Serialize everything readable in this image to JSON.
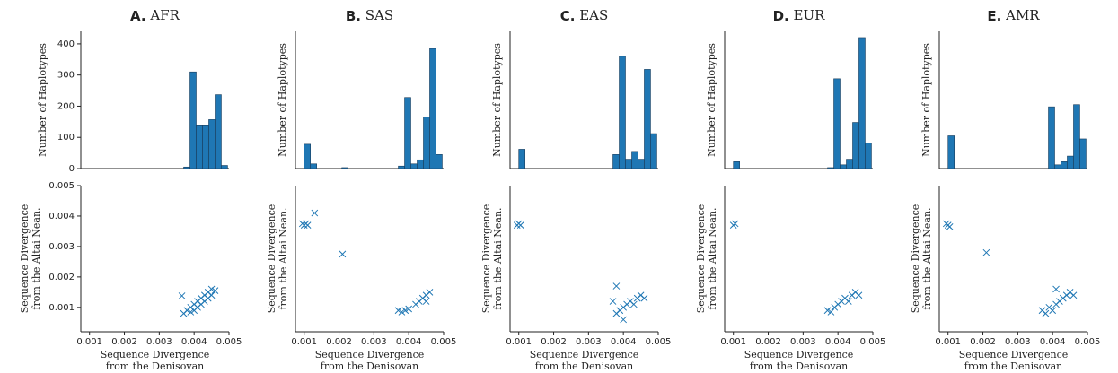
{
  "chart_data": [
    {
      "type": "histogram",
      "panel": "A.",
      "title": "AFR",
      "ylabel": "Number of Haplotypes",
      "color": "#1f77b4",
      "bins": [
        0.001,
        0.00118,
        0.00136,
        0.00154,
        0.00172,
        0.0019,
        0.00208,
        0.00226,
        0.00244,
        0.00262,
        0.0028,
        0.00298,
        0.00316,
        0.00334,
        0.00352,
        0.0037,
        0.00388,
        0.00406,
        0.00424,
        0.00442,
        0.0046,
        0.00478,
        0.00496
      ],
      "values": [
        0,
        0,
        0,
        0,
        0,
        0,
        0,
        0,
        0,
        0,
        0,
        0,
        0,
        0,
        0,
        5,
        310,
        140,
        140,
        157,
        237,
        10
      ],
      "xlim": [
        0.00075,
        0.005
      ],
      "ylim": [
        0,
        440
      ],
      "yticks": [
        0,
        100,
        200,
        300,
        400
      ]
    },
    {
      "type": "scatter",
      "xlabel": [
        "Sequence Divergence",
        "from the Denisovan"
      ],
      "ylabel": [
        "Sequence Divergence",
        "from the Altai Nean."
      ],
      "color": "#1f77b4",
      "x": [
        0.00365,
        0.0037,
        0.0038,
        0.0039,
        0.0039,
        0.004,
        0.004,
        0.0041,
        0.0041,
        0.0042,
        0.0042,
        0.0043,
        0.0043,
        0.0044,
        0.0044,
        0.0045,
        0.0045,
        0.0046
      ],
      "y": [
        0.00138,
        0.0008,
        0.0009,
        0.00085,
        0.001,
        0.0009,
        0.0011,
        0.001,
        0.0012,
        0.0011,
        0.0013,
        0.0012,
        0.0014,
        0.0013,
        0.0015,
        0.0014,
        0.0016,
        0.00155
      ],
      "xlim": [
        0.00075,
        0.005
      ],
      "ylim": [
        0.0002,
        0.005
      ],
      "xticks": [
        0.001,
        0.002,
        0.003,
        0.004,
        0.005
      ],
      "yticks": [
        0.001,
        0.002,
        0.003,
        0.004,
        0.005
      ]
    },
    {
      "type": "histogram",
      "panel": "B.",
      "title": "SAS",
      "ylabel": "Number of Haplotypes",
      "color": "#1f77b4",
      "bins": [
        0.001,
        0.00118,
        0.00136,
        0.00154,
        0.00172,
        0.0019,
        0.00208,
        0.00226,
        0.00244,
        0.00262,
        0.0028,
        0.00298,
        0.00316,
        0.00334,
        0.00352,
        0.0037,
        0.00388,
        0.00406,
        0.00424,
        0.00442,
        0.0046,
        0.00478,
        0.00496
      ],
      "values": [
        78,
        15,
        0,
        0,
        0,
        0,
        3,
        0,
        0,
        0,
        0,
        0,
        0,
        0,
        0,
        8,
        228,
        15,
        28,
        165,
        385,
        45
      ],
      "xlim": [
        0.00075,
        0.005
      ],
      "ylim": [
        0,
        440
      ]
    },
    {
      "type": "scatter",
      "xlabel": [
        "Sequence Divergence",
        "from the Denisovan"
      ],
      "ylabel": [
        "Sequence Divergence",
        "from the Altai Nean."
      ],
      "color": "#1f77b4",
      "x": [
        0.00095,
        0.001,
        0.00105,
        0.0011,
        0.0013,
        0.0021,
        0.0037,
        0.0038,
        0.0039,
        0.004,
        0.0042,
        0.0043,
        0.0044,
        0.0045,
        0.0045,
        0.0046
      ],
      "y": [
        0.00375,
        0.0037,
        0.00375,
        0.0037,
        0.0041,
        0.00275,
        0.0009,
        0.00085,
        0.0009,
        0.00095,
        0.0011,
        0.0012,
        0.0013,
        0.0014,
        0.0012,
        0.0015
      ],
      "xlim": [
        0.00075,
        0.005
      ],
      "ylim": [
        0.0002,
        0.005
      ],
      "xticks": [
        0.001,
        0.002,
        0.003,
        0.004,
        0.005
      ]
    },
    {
      "type": "histogram",
      "panel": "C.",
      "title": "EAS",
      "ylabel": "Number of Haplotypes",
      "color": "#1f77b4",
      "bins": [
        0.001,
        0.00118,
        0.00136,
        0.00154,
        0.00172,
        0.0019,
        0.00208,
        0.00226,
        0.00244,
        0.00262,
        0.0028,
        0.00298,
        0.00316,
        0.00334,
        0.00352,
        0.0037,
        0.00388,
        0.00406,
        0.00424,
        0.00442,
        0.0046,
        0.00478,
        0.00496
      ],
      "values": [
        62,
        0,
        0,
        0,
        0,
        0,
        0,
        0,
        0,
        0,
        0,
        0,
        0,
        0,
        0,
        45,
        360,
        30,
        55,
        30,
        318,
        112
      ],
      "xlim": [
        0.00075,
        0.005
      ],
      "ylim": [
        0,
        440
      ]
    },
    {
      "type": "scatter",
      "xlabel": [
        "Sequence Divergence",
        "from the Denisovan"
      ],
      "ylabel": [
        "Sequence Divergence",
        "from the Altai Nean."
      ],
      "color": "#1f77b4",
      "x": [
        0.00095,
        0.001,
        0.00105,
        0.0037,
        0.0038,
        0.0038,
        0.0039,
        0.004,
        0.004,
        0.0041,
        0.0042,
        0.0043,
        0.0044,
        0.0045,
        0.0046
      ],
      "y": [
        0.0037,
        0.00375,
        0.0037,
        0.0012,
        0.0017,
        0.0008,
        0.0009,
        0.0006,
        0.001,
        0.0011,
        0.0012,
        0.0011,
        0.0013,
        0.0014,
        0.0013
      ],
      "xlim": [
        0.00075,
        0.005
      ],
      "ylim": [
        0.0002,
        0.005
      ],
      "xticks": [
        0.001,
        0.002,
        0.003,
        0.004,
        0.005
      ]
    },
    {
      "type": "histogram",
      "panel": "D.",
      "title": "EUR",
      "ylabel": "Number of Haplotypes",
      "color": "#1f77b4",
      "bins": [
        0.001,
        0.00118,
        0.00136,
        0.00154,
        0.00172,
        0.0019,
        0.00208,
        0.00226,
        0.00244,
        0.00262,
        0.0028,
        0.00298,
        0.00316,
        0.00334,
        0.00352,
        0.0037,
        0.00388,
        0.00406,
        0.00424,
        0.00442,
        0.0046,
        0.00478,
        0.00496
      ],
      "values": [
        22,
        0,
        0,
        0,
        0,
        0,
        0,
        0,
        0,
        0,
        0,
        0,
        0,
        0,
        0,
        3,
        288,
        12,
        30,
        148,
        420,
        82
      ],
      "xlim": [
        0.00075,
        0.005
      ],
      "ylim": [
        0,
        440
      ]
    },
    {
      "type": "scatter",
      "xlabel": [
        "Sequence Divergence",
        "from the Denisovan"
      ],
      "ylabel": [
        "Sequence Divergence",
        "from the Altai Nean."
      ],
      "color": "#1f77b4",
      "x": [
        0.001,
        0.00105,
        0.0037,
        0.0038,
        0.0039,
        0.004,
        0.0041,
        0.0042,
        0.0043,
        0.0044,
        0.0045,
        0.0046
      ],
      "y": [
        0.0037,
        0.00375,
        0.0009,
        0.00085,
        0.001,
        0.0011,
        0.0012,
        0.0013,
        0.0012,
        0.0014,
        0.0015,
        0.0014
      ],
      "xlim": [
        0.00075,
        0.005
      ],
      "ylim": [
        0.0002,
        0.005
      ],
      "xticks": [
        0.001,
        0.002,
        0.003,
        0.004,
        0.005
      ]
    },
    {
      "type": "histogram",
      "panel": "E.",
      "title": "AMR",
      "ylabel": "Number of Haplotypes",
      "color": "#1f77b4",
      "bins": [
        0.001,
        0.00118,
        0.00136,
        0.00154,
        0.00172,
        0.0019,
        0.00208,
        0.00226,
        0.00244,
        0.00262,
        0.0028,
        0.00298,
        0.00316,
        0.00334,
        0.00352,
        0.0037,
        0.00388,
        0.00406,
        0.00424,
        0.00442,
        0.0046,
        0.00478,
        0.00496
      ],
      "values": [
        105,
        0,
        0,
        0,
        0,
        0,
        0,
        0,
        0,
        0,
        0,
        0,
        0,
        0,
        0,
        0,
        198,
        12,
        22,
        40,
        205,
        95
      ],
      "xlim": [
        0.00075,
        0.005
      ],
      "ylim": [
        0,
        440
      ]
    },
    {
      "type": "scatter",
      "xlabel": [
        "Sequence Divergence",
        "from the Denisovan"
      ],
      "ylabel": [
        "Sequence Divergence",
        "from the Altai Nean."
      ],
      "color": "#1f77b4",
      "x": [
        0.00095,
        0.001,
        0.00105,
        0.0021,
        0.0037,
        0.0038,
        0.0039,
        0.004,
        0.0041,
        0.0041,
        0.0042,
        0.0043,
        0.0044,
        0.0045,
        0.0046
      ],
      "y": [
        0.00375,
        0.0037,
        0.00365,
        0.0028,
        0.0009,
        0.0008,
        0.001,
        0.0009,
        0.0016,
        0.0011,
        0.0012,
        0.0013,
        0.0014,
        0.0015,
        0.0014
      ],
      "xlim": [
        0.00075,
        0.005
      ],
      "ylim": [
        0.0002,
        0.005
      ],
      "xticks": [
        0.001,
        0.002,
        0.003,
        0.004,
        0.005
      ]
    }
  ]
}
